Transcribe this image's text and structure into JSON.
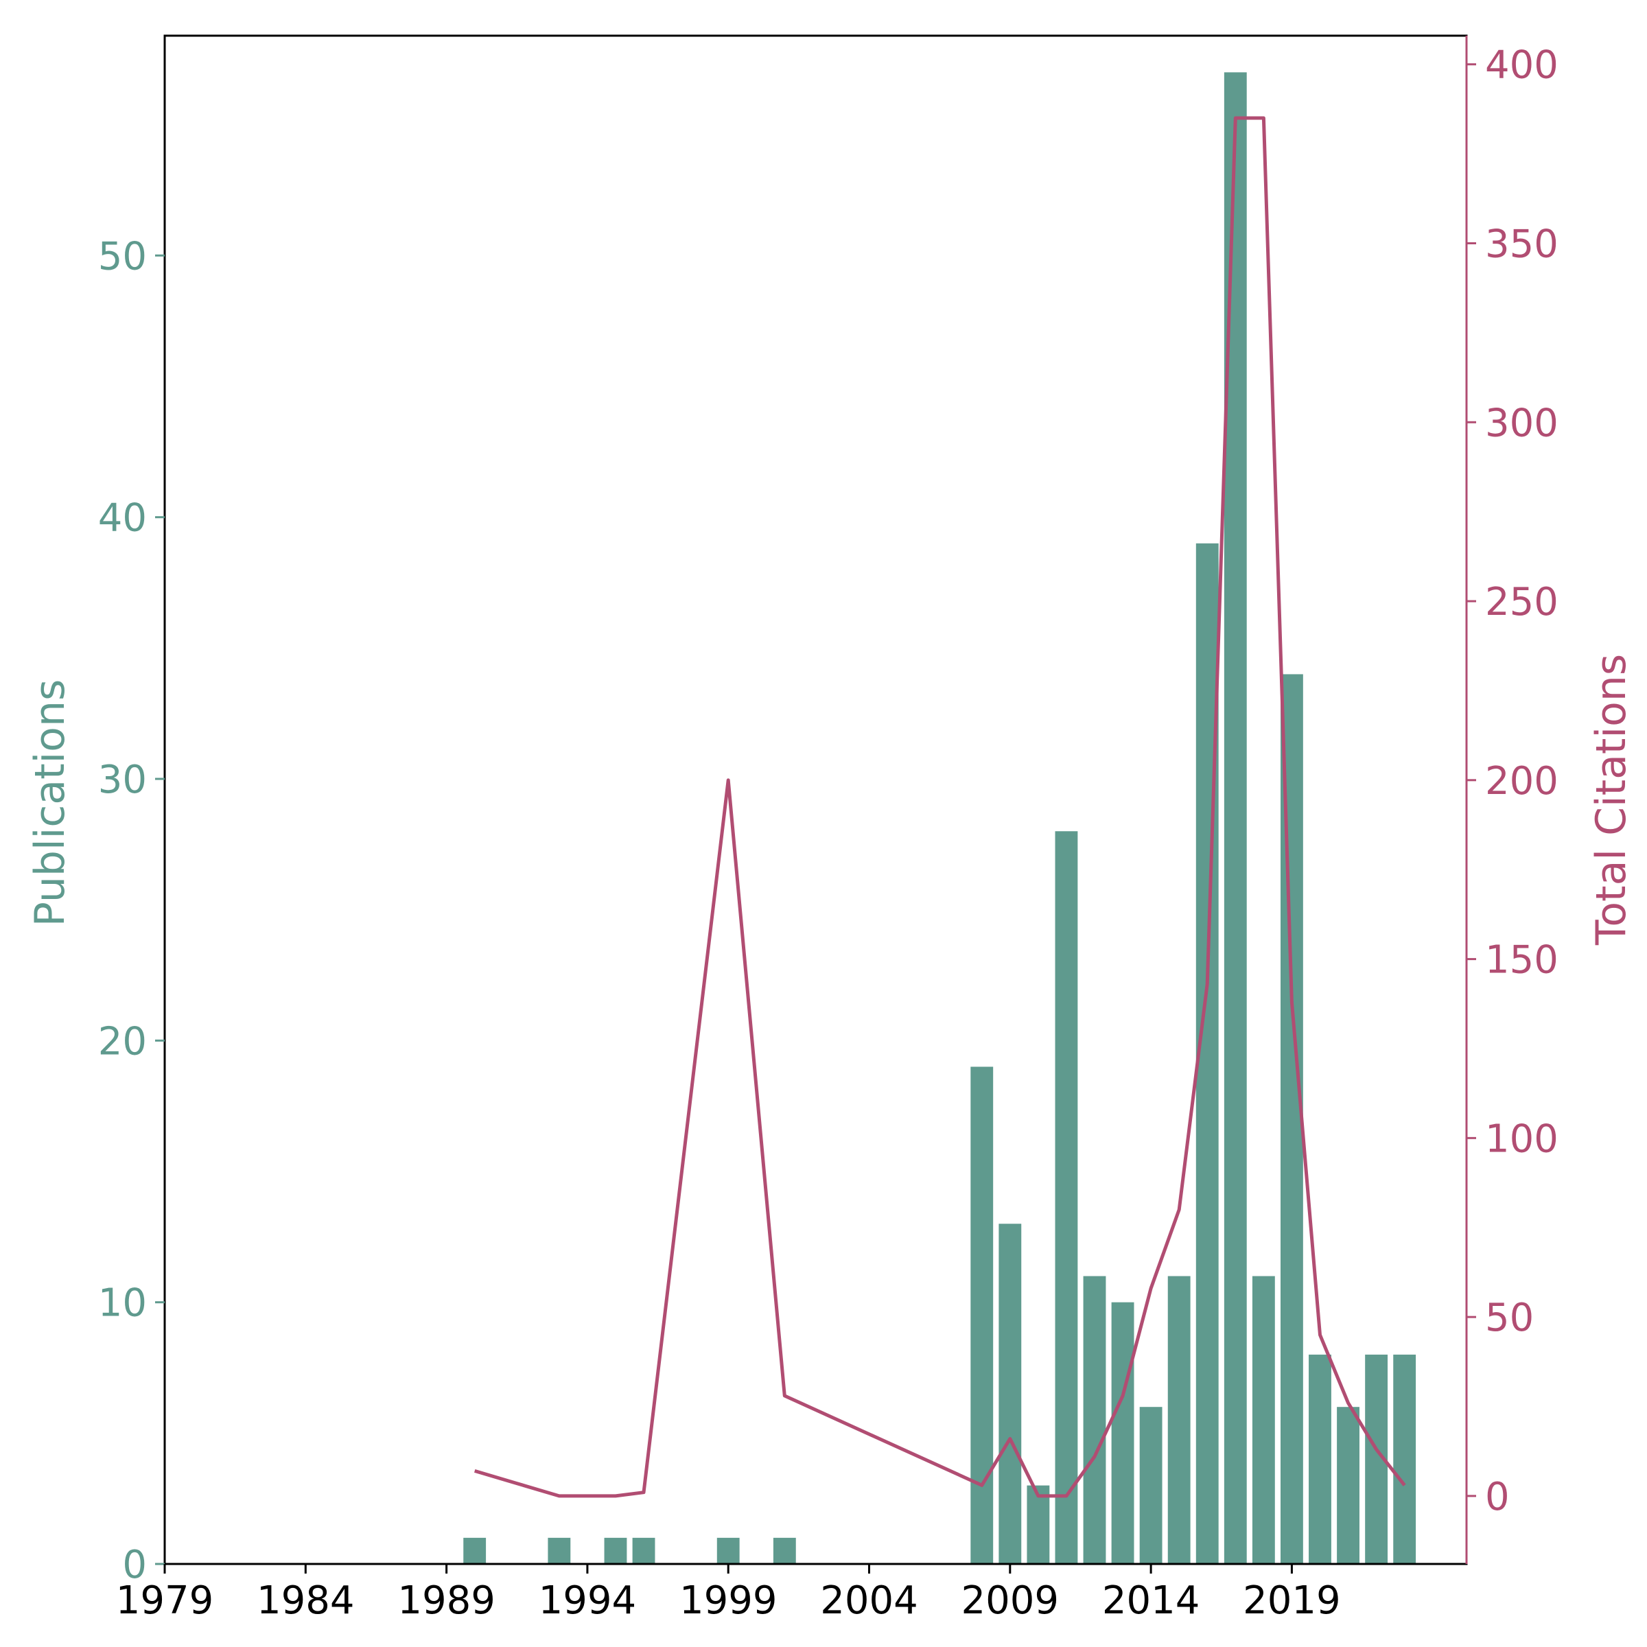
{
  "chart_data": {
    "type": "bar",
    "xlim": [
      1979,
      2025.2
    ],
    "x_ticks": [
      "1979",
      "1984",
      "1989",
      "1994",
      "1999",
      "2004",
      "2009",
      "2014",
      "2019"
    ],
    "ylabel": "Publications",
    "y2label": "Total Citations",
    "ylim": [
      0,
      58.4
    ],
    "y_ticks": [
      "0",
      "10",
      "20",
      "30",
      "40",
      "50"
    ],
    "y2lim": [
      -19,
      408
    ],
    "y2_ticks": [
      "0",
      "50",
      "100",
      "150",
      "200",
      "250",
      "300",
      "350",
      "400"
    ],
    "colors": {
      "bars": "#5f9a8e",
      "line": "#b14d72",
      "axis": "#000000"
    },
    "grid": false,
    "series": [
      {
        "kind": "bar",
        "axis": "left",
        "x": [
          1990,
          1993,
          1995,
          1996,
          1999,
          2001,
          2008,
          2009,
          2010,
          2011,
          2012,
          2013,
          2014,
          2015,
          2016,
          2017,
          2018,
          2019,
          2020,
          2021,
          2022,
          2023
        ],
        "values": [
          1,
          1,
          1,
          1,
          1,
          1,
          19,
          13,
          3,
          28,
          11,
          10,
          6,
          11,
          39,
          57,
          11,
          34,
          8,
          6,
          8,
          8
        ]
      },
      {
        "kind": "line",
        "axis": "right",
        "x": [
          1990,
          1993,
          1995,
          1996,
          1999,
          2001,
          2008,
          2009,
          2010,
          2011,
          2012,
          2013,
          2014,
          2015,
          2016,
          2017,
          2018,
          2019,
          2020,
          2021,
          2022,
          2023
        ],
        "values": [
          7,
          0,
          0,
          1,
          200,
          28,
          3,
          16,
          0,
          0,
          11,
          28,
          58,
          80,
          143,
          385,
          385,
          138,
          45,
          26,
          13,
          3
        ]
      }
    ]
  }
}
